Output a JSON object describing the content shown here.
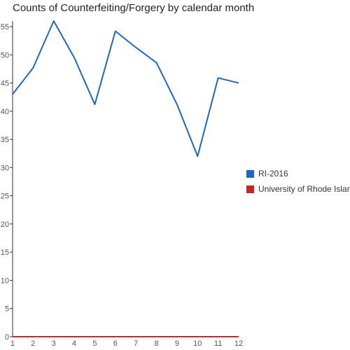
{
  "chart_data": {
    "type": "line",
    "title": "Counts of Counterfeiting/Forgery by calendar month",
    "xlabel": "",
    "ylabel": "",
    "x": [
      1,
      2,
      3,
      4,
      5,
      6,
      7,
      8,
      9,
      10,
      11,
      12
    ],
    "xlim": [
      1,
      12
    ],
    "ylim": [
      0,
      56
    ],
    "yticks": [
      0,
      5,
      10,
      15,
      20,
      25,
      30,
      35,
      40,
      45,
      50,
      55
    ],
    "grid": false,
    "legend_position": "right",
    "series": [
      {
        "name": "RI-2016",
        "color": "#1f66c1",
        "values": [
          43,
          47.7,
          56,
          49.5,
          41.2,
          54.2,
          51.3,
          48.6,
          41.2,
          32,
          45.9,
          45
        ]
      },
      {
        "name": "University of Rhode Island",
        "color": "#c62828",
        "values": [
          0,
          0,
          0,
          0,
          0,
          0,
          0,
          0,
          0,
          0,
          0,
          0
        ]
      }
    ]
  }
}
